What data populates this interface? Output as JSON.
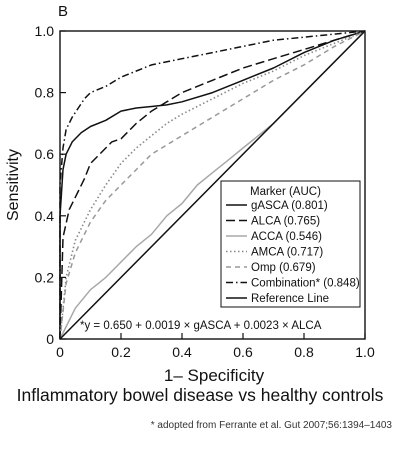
{
  "panel_label": "B",
  "caption": "Inflammatory bowel disease vs healthy controls",
  "source_note": "* adopted from Ferrante et al. Gut 2007;56:1394–1403",
  "chart_data": {
    "type": "line",
    "xlabel": "1– Specificity",
    "ylabel": "Sensitivity",
    "xlim": [
      0,
      1
    ],
    "ylim": [
      0,
      1
    ],
    "xticks": [
      "0",
      "0.2",
      "0.4",
      "0.6",
      "0.8",
      "1.0"
    ],
    "yticks": [
      "0",
      "0.2",
      "0.4",
      "0.6",
      "0.8",
      "1.0"
    ],
    "grid": false,
    "legend_title": "Marker (AUC)",
    "legend_position": "bottom-right",
    "annotation": "*y = 0.650 + 0.0019 × gASCA + 0.0023 × ALCA",
    "series": [
      {
        "name": "gASCA (0.801)",
        "style": "solid",
        "color": "#111111",
        "x": [
          0,
          0,
          0.01,
          0.02,
          0.04,
          0.07,
          0.1,
          0.15,
          0.2,
          0.25,
          0.3,
          0.35,
          0.4,
          0.5,
          0.6,
          0.7,
          0.8,
          0.9,
          1.0
        ],
        "y": [
          0,
          0.4,
          0.55,
          0.6,
          0.64,
          0.67,
          0.69,
          0.71,
          0.74,
          0.75,
          0.755,
          0.76,
          0.77,
          0.8,
          0.84,
          0.88,
          0.93,
          0.97,
          1.0
        ]
      },
      {
        "name": "ALCA (0.765)",
        "style": "long-dash",
        "color": "#111111",
        "x": [
          0,
          0.01,
          0.03,
          0.05,
          0.08,
          0.1,
          0.13,
          0.15,
          0.17,
          0.2,
          0.25,
          0.3,
          0.35,
          0.4,
          0.5,
          0.6,
          0.7,
          0.8,
          0.9,
          1.0
        ],
        "y": [
          0,
          0.33,
          0.42,
          0.46,
          0.52,
          0.57,
          0.6,
          0.62,
          0.64,
          0.65,
          0.7,
          0.74,
          0.77,
          0.8,
          0.84,
          0.88,
          0.91,
          0.94,
          0.97,
          1.0
        ]
      },
      {
        "name": "ACCA (0.546)",
        "style": "solid",
        "color": "#a8a8a8",
        "x": [
          0,
          0.05,
          0.1,
          0.15,
          0.2,
          0.25,
          0.3,
          0.35,
          0.4,
          0.45,
          0.5,
          0.55,
          0.6,
          0.65,
          0.7,
          0.75,
          0.8,
          0.85,
          0.9,
          0.95,
          1.0
        ],
        "y": [
          0,
          0.1,
          0.16,
          0.2,
          0.25,
          0.3,
          0.34,
          0.4,
          0.44,
          0.5,
          0.54,
          0.58,
          0.62,
          0.66,
          0.7,
          0.75,
          0.8,
          0.85,
          0.9,
          0.95,
          1.0
        ]
      },
      {
        "name": "AMCA (0.717)",
        "style": "dotted",
        "color": "#888888",
        "x": [
          0,
          0.02,
          0.05,
          0.1,
          0.15,
          0.2,
          0.25,
          0.3,
          0.35,
          0.4,
          0.5,
          0.6,
          0.7,
          0.8,
          0.9,
          1.0
        ],
        "y": [
          0,
          0.2,
          0.32,
          0.42,
          0.5,
          0.57,
          0.62,
          0.66,
          0.7,
          0.73,
          0.78,
          0.83,
          0.87,
          0.92,
          0.96,
          1.0
        ]
      },
      {
        "name": "Omp (0.679)",
        "style": "dashed",
        "color": "#999999",
        "x": [
          0,
          0.02,
          0.05,
          0.1,
          0.15,
          0.2,
          0.25,
          0.3,
          0.4,
          0.5,
          0.6,
          0.7,
          0.8,
          0.9,
          1.0
        ],
        "y": [
          0,
          0.18,
          0.28,
          0.38,
          0.45,
          0.5,
          0.55,
          0.6,
          0.66,
          0.72,
          0.78,
          0.84,
          0.89,
          0.95,
          1.0
        ]
      },
      {
        "name": "Combination* (0.848)",
        "style": "dash-dot",
        "color": "#111111",
        "x": [
          0,
          0,
          0.01,
          0.02,
          0.04,
          0.06,
          0.08,
          0.1,
          0.15,
          0.2,
          0.25,
          0.3,
          0.4,
          0.5,
          0.6,
          0.7,
          0.8,
          0.9,
          1.0
        ],
        "y": [
          0,
          0.5,
          0.62,
          0.68,
          0.72,
          0.75,
          0.78,
          0.8,
          0.82,
          0.85,
          0.87,
          0.89,
          0.91,
          0.93,
          0.95,
          0.97,
          0.98,
          0.99,
          1.0
        ]
      },
      {
        "name": "Reference Line",
        "style": "solid",
        "color": "#111111",
        "x": [
          0,
          1
        ],
        "y": [
          0,
          1
        ]
      }
    ]
  }
}
